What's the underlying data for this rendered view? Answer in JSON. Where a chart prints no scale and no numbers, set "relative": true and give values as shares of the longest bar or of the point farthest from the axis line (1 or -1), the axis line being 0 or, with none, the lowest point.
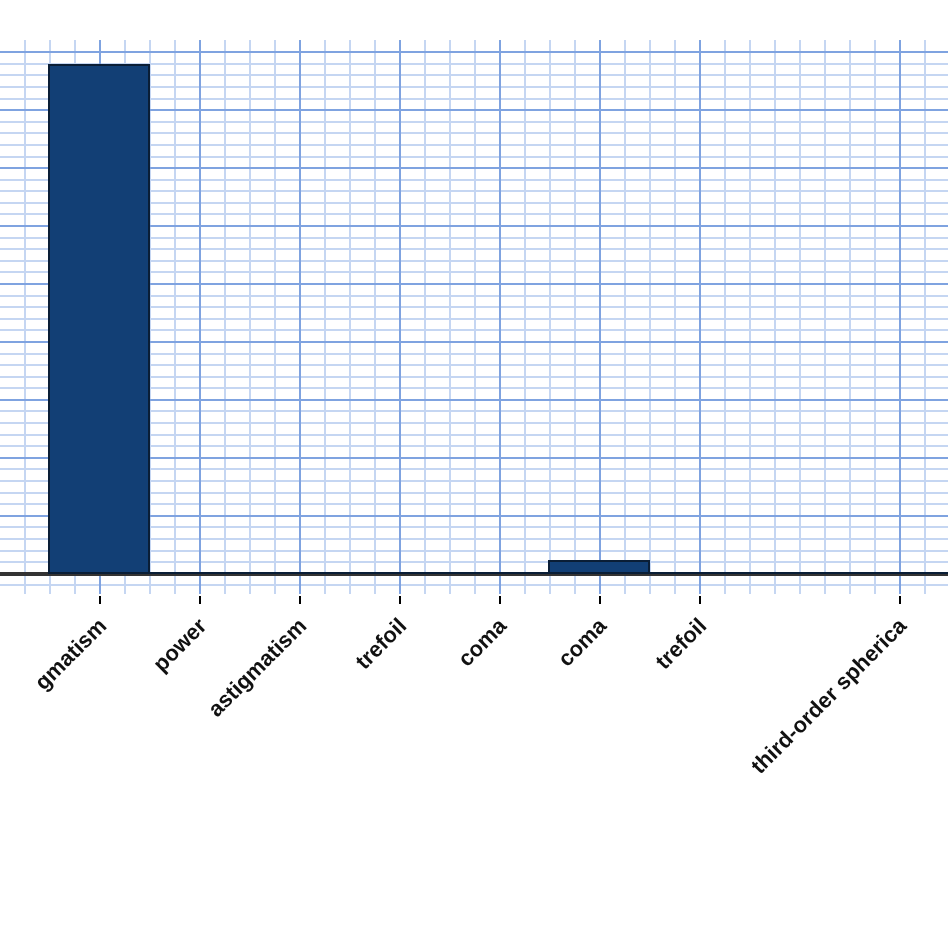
{
  "chart_data": {
    "type": "bar",
    "relative": true,
    "categories": [
      "gmatism",
      "power",
      "astigmatism",
      "trefoil",
      "coma",
      "coma",
      "trefoil",
      null,
      "third-order spherica"
    ],
    "values": [
      1,
      0,
      0,
      0,
      0,
      0.024,
      0,
      0,
      0
    ],
    "color": "#123f75",
    "grid": true,
    "legend": false
  }
}
